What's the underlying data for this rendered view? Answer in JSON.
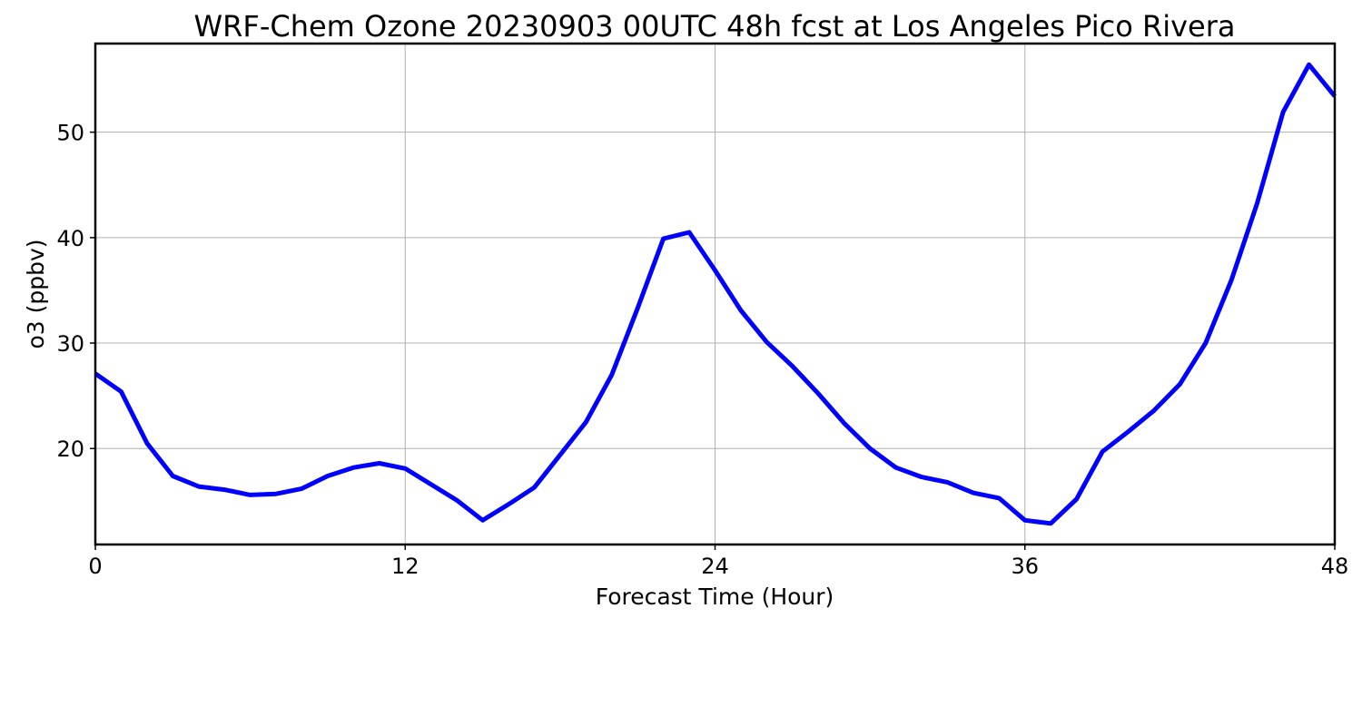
{
  "chart_data": {
    "type": "line",
    "title": "WRF-Chem Ozone  20230903 00UTC 48h fcst at Los Angeles Pico Rivera",
    "xlabel": "Forecast Time (Hour)",
    "ylabel": "o3  (ppbv)",
    "xlim": [
      0,
      48
    ],
    "ylim": [
      10.9,
      58.4
    ],
    "xticks": [
      0,
      12,
      24,
      36,
      48
    ],
    "xtick_labels": [
      "0",
      "12",
      "24",
      "36",
      "48"
    ],
    "yticks": [
      20,
      30,
      40,
      50
    ],
    "ytick_labels": [
      "20",
      "30",
      "40",
      "50"
    ],
    "grid": true,
    "series": [
      {
        "color": "#0000ff",
        "x": [
          0,
          1,
          2,
          3,
          4,
          5,
          6,
          7,
          8,
          9,
          10,
          11,
          12,
          13,
          14,
          15,
          16,
          17,
          18,
          19,
          20,
          21,
          22,
          23,
          24,
          25,
          26,
          27,
          28,
          29,
          30,
          31,
          32,
          33,
          34,
          35,
          36,
          37,
          38,
          39,
          40,
          41,
          42,
          43,
          44,
          45,
          46,
          47,
          48
        ],
        "values": [
          27.1,
          25.4,
          20.5,
          17.4,
          16.4,
          16.1,
          15.6,
          15.7,
          16.2,
          17.4,
          18.2,
          18.6,
          18.1,
          16.6,
          15.1,
          13.2,
          14.7,
          16.3,
          19.4,
          22.5,
          27.0,
          33.3,
          39.9,
          40.5,
          36.9,
          33.1,
          30.1,
          27.8,
          25.2,
          22.4,
          20.0,
          18.2,
          17.3,
          16.8,
          15.8,
          15.3,
          13.2,
          12.9,
          15.2,
          19.7,
          21.6,
          23.6,
          26.1,
          30.0,
          36.0,
          43.3,
          51.9,
          56.4,
          53.4
        ]
      }
    ]
  }
}
